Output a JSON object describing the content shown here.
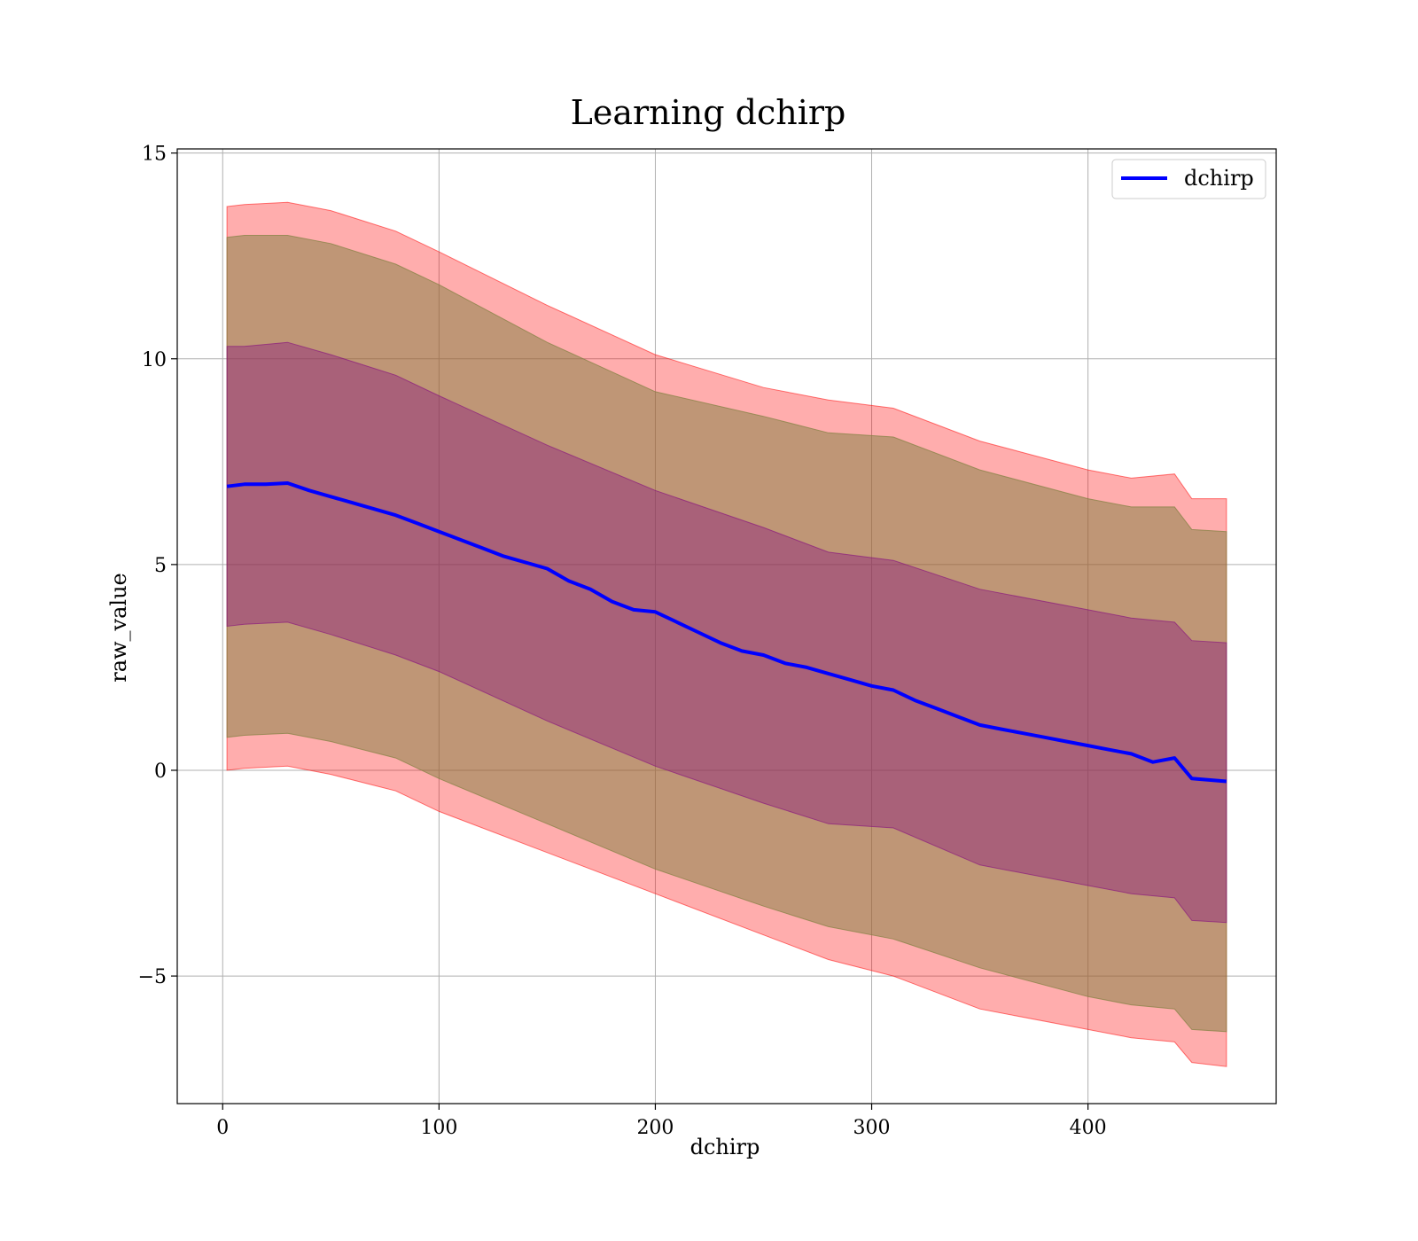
{
  "chart_data": {
    "type": "line",
    "title": "Learning dchirp",
    "xlabel": "dchirp",
    "ylabel": "raw_value",
    "xlim": [
      -21,
      487
    ],
    "ylim": [
      -8.1,
      15.1
    ],
    "x_ticks": [
      0,
      100,
      200,
      300,
      400
    ],
    "x_tick_labels": [
      "0",
      "100",
      "200",
      "300",
      "400"
    ],
    "y_ticks": [
      -5,
      0,
      5,
      10,
      15
    ],
    "y_tick_labels": [
      "−5",
      "0",
      "5",
      "10",
      "15"
    ],
    "grid": true,
    "legend": {
      "position": "top-right",
      "entries": [
        "dchirp"
      ]
    },
    "series": [
      {
        "name": "dchirp",
        "kind": "line",
        "color": "#0000ff",
        "points": [
          [
            2,
            6.9
          ],
          [
            10,
            6.95
          ],
          [
            20,
            6.95
          ],
          [
            30,
            6.98
          ],
          [
            40,
            6.8
          ],
          [
            50,
            6.65
          ],
          [
            60,
            6.5
          ],
          [
            70,
            6.35
          ],
          [
            80,
            6.2
          ],
          [
            90,
            6.0
          ],
          [
            100,
            5.8
          ],
          [
            110,
            5.6
          ],
          [
            120,
            5.4
          ],
          [
            130,
            5.2
          ],
          [
            140,
            5.05
          ],
          [
            150,
            4.9
          ],
          [
            160,
            4.6
          ],
          [
            170,
            4.4
          ],
          [
            180,
            4.1
          ],
          [
            190,
            3.9
          ],
          [
            200,
            3.85
          ],
          [
            210,
            3.6
          ],
          [
            220,
            3.35
          ],
          [
            230,
            3.1
          ],
          [
            240,
            2.9
          ],
          [
            250,
            2.8
          ],
          [
            260,
            2.6
          ],
          [
            270,
            2.5
          ],
          [
            280,
            2.35
          ],
          [
            290,
            2.2
          ],
          [
            300,
            2.05
          ],
          [
            310,
            1.95
          ],
          [
            320,
            1.7
          ],
          [
            330,
            1.5
          ],
          [
            340,
            1.3
          ],
          [
            350,
            1.1
          ],
          [
            360,
            1.0
          ],
          [
            370,
            0.9
          ],
          [
            380,
            0.8
          ],
          [
            390,
            0.7
          ],
          [
            400,
            0.6
          ],
          [
            410,
            0.5
          ],
          [
            420,
            0.4
          ],
          [
            430,
            0.2
          ],
          [
            440,
            0.3
          ],
          [
            448,
            -0.2
          ],
          [
            464,
            -0.27
          ]
        ]
      }
    ],
    "bands": [
      {
        "color": "#ff0000",
        "opacity": 0.32,
        "x": [
          2,
          10,
          30,
          50,
          80,
          100,
          150,
          200,
          250,
          280,
          310,
          350,
          400,
          420,
          440,
          448,
          464
        ],
        "upper": [
          13.7,
          13.75,
          13.8,
          13.6,
          13.1,
          12.6,
          11.3,
          10.1,
          9.3,
          9.0,
          8.8,
          8.0,
          7.3,
          7.1,
          7.2,
          6.6,
          6.6
        ],
        "lower": [
          0.0,
          0.05,
          0.1,
          -0.1,
          -0.5,
          -1.0,
          -2.0,
          -3.0,
          -4.0,
          -4.6,
          -5.0,
          -5.8,
          -6.3,
          -6.5,
          -6.6,
          -7.1,
          -7.2
        ]
      },
      {
        "color": "#808040",
        "opacity": 0.5,
        "x": [
          2,
          10,
          30,
          50,
          80,
          100,
          150,
          200,
          250,
          280,
          310,
          350,
          400,
          420,
          440,
          448,
          464
        ],
        "upper": [
          12.95,
          13.0,
          13.0,
          12.8,
          12.3,
          11.8,
          10.4,
          9.2,
          8.6,
          8.2,
          8.1,
          7.3,
          6.6,
          6.4,
          6.4,
          5.85,
          5.8
        ],
        "lower": [
          0.8,
          0.85,
          0.9,
          0.7,
          0.3,
          -0.2,
          -1.3,
          -2.4,
          -3.3,
          -3.8,
          -4.1,
          -4.8,
          -5.5,
          -5.7,
          -5.8,
          -6.3,
          -6.35
        ]
      },
      {
        "color": "#800080",
        "opacity": 0.35,
        "x": [
          2,
          10,
          30,
          50,
          80,
          100,
          150,
          200,
          250,
          280,
          310,
          350,
          400,
          420,
          440,
          448,
          464
        ],
        "upper": [
          10.3,
          10.3,
          10.4,
          10.1,
          9.6,
          9.1,
          7.9,
          6.8,
          5.9,
          5.3,
          5.1,
          4.4,
          3.9,
          3.7,
          3.6,
          3.15,
          3.1
        ],
        "lower": [
          3.5,
          3.55,
          3.6,
          3.3,
          2.8,
          2.4,
          1.2,
          0.1,
          -0.8,
          -1.3,
          -1.4,
          -2.3,
          -2.8,
          -3.0,
          -3.1,
          -3.65,
          -3.7
        ]
      }
    ]
  }
}
